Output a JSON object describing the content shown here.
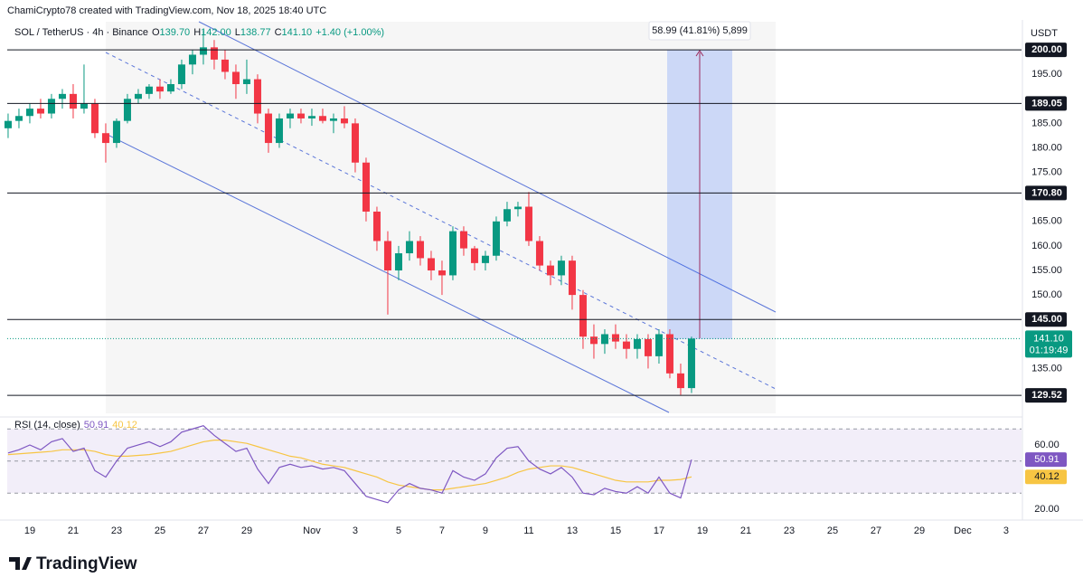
{
  "header": {
    "credit": "ChamiCrypto78 created with TradingView.com, Nov 18, 2025 18:40 UTC",
    "symbol": "SOL / TetherUS · 4h · Binance",
    "ohlc": [
      {
        "key": "O",
        "value": "139.70"
      },
      {
        "key": "H",
        "value": "142.00"
      },
      {
        "key": "L",
        "value": "138.77"
      },
      {
        "key": "C",
        "value": "141.10"
      }
    ],
    "change": "+1.40 (+1.00%)"
  },
  "chart_data": [
    {
      "type": "candlestick",
      "currency": "USDT",
      "annotation": "58.99 (41.81%) 5,899",
      "up_color": "#089981",
      "down_color": "#f23645",
      "x": [
        -1,
        -0.5,
        0,
        0.5,
        1,
        1.5,
        2,
        2.5,
        3,
        3.5,
        4,
        4.5,
        5,
        5.5,
        6,
        6.5,
        7,
        7.5,
        8,
        8.5,
        9,
        9.5,
        10,
        10.5,
        11,
        11.5,
        12,
        12.5,
        13,
        13.5,
        14,
        14.5,
        15,
        15.5,
        16,
        16.5,
        17,
        17.5,
        18,
        18.5,
        19,
        19.5,
        20,
        20.5,
        21,
        21.5,
        22,
        22.5,
        23,
        23.5,
        24,
        24.5,
        25,
        25.5,
        26,
        26.5,
        27,
        27.5,
        28,
        28.5,
        29,
        29.5,
        30,
        30.5
      ],
      "open": [
        184,
        185.5,
        186.5,
        188,
        187,
        190,
        191,
        188,
        189,
        183,
        181,
        185.5,
        190,
        191,
        192.5,
        191.5,
        193,
        197,
        199,
        200.5,
        198,
        195.5,
        193,
        194,
        187,
        181,
        186,
        187,
        186,
        186.5,
        185.5,
        186,
        185,
        177,
        167,
        161,
        155,
        158.5,
        161,
        157.5,
        155,
        154,
        163,
        159.5,
        156.5,
        158,
        165,
        167.5,
        168,
        161,
        156,
        154,
        157,
        150,
        141.5,
        140,
        142,
        140.5,
        139,
        141,
        137.5,
        142,
        134,
        131
      ],
      "high": [
        187,
        188,
        189,
        190,
        191,
        192,
        193,
        197,
        190,
        185,
        186,
        191,
        192,
        193,
        194,
        194,
        198,
        200,
        204,
        202,
        200,
        197,
        198,
        195,
        188,
        187,
        188,
        188,
        188,
        188,
        187,
        188.5,
        186,
        178,
        168,
        163,
        160,
        163,
        162,
        159,
        157,
        164,
        164,
        160,
        159,
        166,
        169,
        169,
        171,
        162,
        157,
        158,
        158,
        151,
        144,
        143,
        144,
        142,
        142,
        142,
        143,
        143,
        136,
        141.5
      ],
      "low": [
        182,
        184,
        185,
        186,
        186,
        188,
        186,
        187,
        182,
        177,
        180,
        185,
        189,
        190,
        190,
        191,
        192,
        195,
        197,
        196,
        194,
        190,
        191,
        185,
        179,
        180,
        184,
        185,
        184.5,
        185,
        183,
        184,
        175,
        165,
        159,
        146,
        153,
        157,
        156,
        153,
        150,
        153,
        158,
        155,
        155,
        157,
        164,
        166,
        160,
        155,
        152,
        152,
        147,
        139,
        137,
        138,
        139,
        137,
        137,
        135,
        136,
        133,
        129.6,
        130
      ],
      "close": [
        185.5,
        186.5,
        188,
        187,
        190,
        191,
        188,
        189,
        183,
        181,
        185.5,
        190,
        191,
        192.5,
        191.5,
        193,
        197,
        199,
        200.5,
        198,
        195.5,
        193,
        194,
        187,
        181,
        186,
        187,
        186,
        186.5,
        185.5,
        186,
        185,
        177,
        167,
        161,
        155,
        158.5,
        161,
        157.5,
        155,
        154,
        163,
        159.5,
        156.5,
        158,
        165,
        167.5,
        168,
        161,
        156,
        154,
        157,
        150,
        141.5,
        140,
        142,
        140.5,
        139,
        141,
        137.5,
        142,
        134,
        131,
        141.1
      ],
      "last_label": "141.10",
      "countdown": "01:19:49",
      "xlim": [
        -1.04,
        45.71
      ],
      "ylim": [
        125.3,
        206.1
      ],
      "xticks": [
        {
          "value": 0,
          "label": "19"
        },
        {
          "value": 2,
          "label": "21"
        },
        {
          "value": 4,
          "label": "23"
        },
        {
          "value": 6,
          "label": "25"
        },
        {
          "value": 8,
          "label": "27"
        },
        {
          "value": 10,
          "label": "29"
        },
        {
          "value": 13,
          "label": "Nov"
        },
        {
          "value": 15,
          "label": "3"
        },
        {
          "value": 17,
          "label": "5"
        },
        {
          "value": 19,
          "label": "7"
        },
        {
          "value": 21,
          "label": "9"
        },
        {
          "value": 23,
          "label": "11"
        },
        {
          "value": 25,
          "label": "13"
        },
        {
          "value": 27,
          "label": "15"
        },
        {
          "value": 29,
          "label": "17"
        },
        {
          "value": 31,
          "label": "19"
        },
        {
          "value": 33,
          "label": "21"
        },
        {
          "value": 35,
          "label": "23"
        },
        {
          "value": 37,
          "label": "25"
        },
        {
          "value": 39,
          "label": "27"
        },
        {
          "value": 41,
          "label": "29"
        },
        {
          "value": 43,
          "label": "Dec"
        },
        {
          "value": 45,
          "label": "3"
        }
      ],
      "yticks": [
        {
          "value": 195,
          "label": "195.00"
        },
        {
          "value": 185,
          "label": "185.00"
        },
        {
          "value": 180,
          "label": "180.00"
        },
        {
          "value": 175,
          "label": "175.00"
        },
        {
          "value": 165,
          "label": "165.00"
        },
        {
          "value": 160,
          "label": "160.00"
        },
        {
          "value": 155,
          "label": "155.00"
        },
        {
          "value": 150,
          "label": "150.00"
        },
        {
          "value": 135,
          "label": "135.00"
        }
      ],
      "levels": [
        {
          "value": 200,
          "label": "200.00"
        },
        {
          "value": 189.05,
          "label": "189.05"
        },
        {
          "value": 170.8,
          "label": "170.80"
        },
        {
          "value": 145,
          "label": "145.00"
        },
        {
          "value": 129.52,
          "label": "129.52"
        }
      ],
      "grid": false
    },
    {
      "type": "line",
      "title": "RSI (14, close)",
      "x": [
        -1,
        -0.5,
        0,
        0.5,
        1,
        1.5,
        2,
        2.5,
        3,
        3.5,
        4,
        4.5,
        5,
        5.5,
        6,
        6.5,
        7,
        7.5,
        8,
        8.5,
        9,
        9.5,
        10,
        10.5,
        11,
        11.5,
        12,
        12.5,
        13,
        13.5,
        14,
        14.5,
        15,
        15.5,
        16,
        16.5,
        17,
        17.5,
        18,
        18.5,
        19,
        19.5,
        20,
        20.5,
        21,
        21.5,
        22,
        22.5,
        23,
        23.5,
        24,
        24.5,
        25,
        25.5,
        26,
        26.5,
        27,
        27.5,
        28,
        28.5,
        29,
        29.5,
        30,
        30.5
      ],
      "series": [
        {
          "color": "#7e57c2",
          "values": [
            55,
            57,
            60,
            57,
            62,
            64,
            56,
            58,
            44,
            40,
            50,
            58,
            60,
            62,
            59,
            62,
            68,
            70,
            72,
            66,
            61,
            56,
            58,
            45,
            36,
            46,
            48,
            46,
            47,
            45,
            46,
            44,
            36,
            28,
            26,
            24,
            32,
            36,
            33,
            32,
            30,
            44,
            40,
            38,
            42,
            52,
            58,
            59,
            50,
            45,
            42,
            46,
            40,
            30,
            29,
            33,
            31,
            30,
            34,
            30,
            40,
            30,
            27,
            50.91
          ]
        },
        {
          "color": "#f7c543",
          "values": [
            54,
            54.5,
            55,
            55.5,
            56,
            57,
            57,
            57,
            56,
            54,
            53,
            53,
            53.5,
            54,
            55,
            56,
            58,
            60,
            62,
            63,
            63,
            62,
            61,
            59,
            57,
            55,
            53,
            52,
            50,
            48,
            47,
            46,
            44,
            42,
            40,
            37,
            35,
            34,
            33,
            32,
            32,
            33,
            34,
            35,
            36,
            38,
            40,
            43,
            45,
            46,
            47,
            47,
            46,
            44,
            42,
            40,
            38,
            37,
            37,
            37,
            38,
            38,
            38.5,
            40.12
          ]
        }
      ],
      "bands": {
        "upper": 70,
        "middle": 50,
        "lower": 30
      },
      "xlim": [
        -1.04,
        45.71
      ],
      "ylim": [
        14.9,
        76.9
      ],
      "yticks": [
        {
          "value": 60,
          "label": "60.00"
        },
        {
          "value": 20,
          "label": "20.00"
        }
      ]
    }
  ],
  "footer": {
    "logo": "TradingView"
  }
}
